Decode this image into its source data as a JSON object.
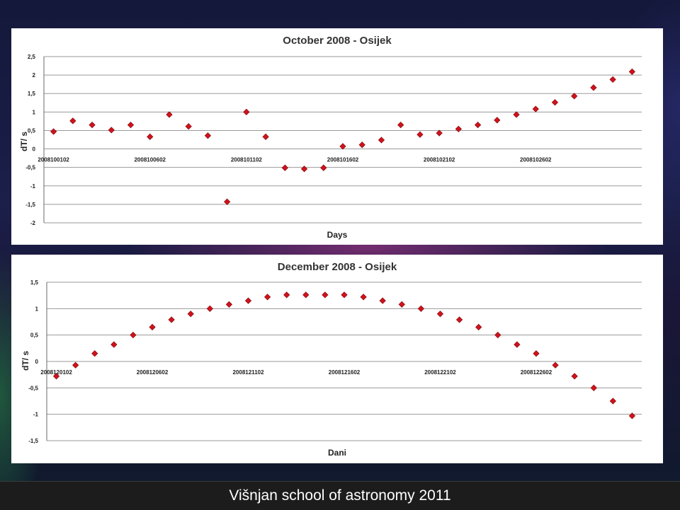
{
  "chart_data": [
    {
      "type": "scatter",
      "title": "October 2008 - Osijek",
      "xlabel": "Days",
      "ylabel": "dT/ s",
      "ylim": [
        -2,
        2.5
      ],
      "yticks": [
        "2,5",
        "2",
        "1,5",
        "1",
        "0,5",
        "0",
        "-0,5",
        "-1",
        "-1,5",
        "-2"
      ],
      "category_labels": [
        "2008100102",
        "2008100602",
        "2008101102",
        "2008101602",
        "2008102102",
        "2008102602"
      ],
      "grid": true,
      "marker": "diamond",
      "color": "#d0121b",
      "series": [
        {
          "values": [
            0.47,
            0.76,
            0.65,
            0.51,
            0.65,
            0.33,
            0.93,
            0.61,
            0.36,
            -1.43,
            1.0,
            0.33,
            -0.51,
            -0.54,
            -0.51,
            0.07,
            0.11,
            0.24,
            0.65,
            0.39,
            0.43,
            0.54,
            0.65,
            0.78,
            0.93,
            1.08,
            1.26,
            1.43,
            1.66,
            1.88,
            2.09
          ]
        }
      ]
    },
    {
      "type": "scatter",
      "title": "December 2008 - Osijek",
      "xlabel": "Dani",
      "ylabel": "dT/ s",
      "ylim": [
        -1.5,
        1.5
      ],
      "yticks": [
        "1,5",
        "1",
        "0,5",
        "0",
        "-0,5",
        "-1",
        "-1,5"
      ],
      "category_labels": [
        "2008120102",
        "2008120602",
        "2008121102",
        "2008121602",
        "2008122102",
        "2008122602"
      ],
      "grid": true,
      "marker": "diamond",
      "color": "#d0121b",
      "series": [
        {
          "values": [
            -0.28,
            -0.07,
            0.15,
            0.32,
            0.5,
            0.65,
            0.79,
            0.9,
            1.0,
            1.08,
            1.15,
            1.22,
            1.26,
            1.26,
            1.26,
            1.26,
            1.22,
            1.15,
            1.08,
            1.0,
            0.9,
            0.79,
            0.65,
            0.5,
            0.32,
            0.15,
            -0.07,
            -0.28,
            -0.5,
            -0.75,
            -1.03
          ]
        }
      ]
    }
  ],
  "footer": {
    "caption": "Višnjan school of astronomy 2011"
  }
}
